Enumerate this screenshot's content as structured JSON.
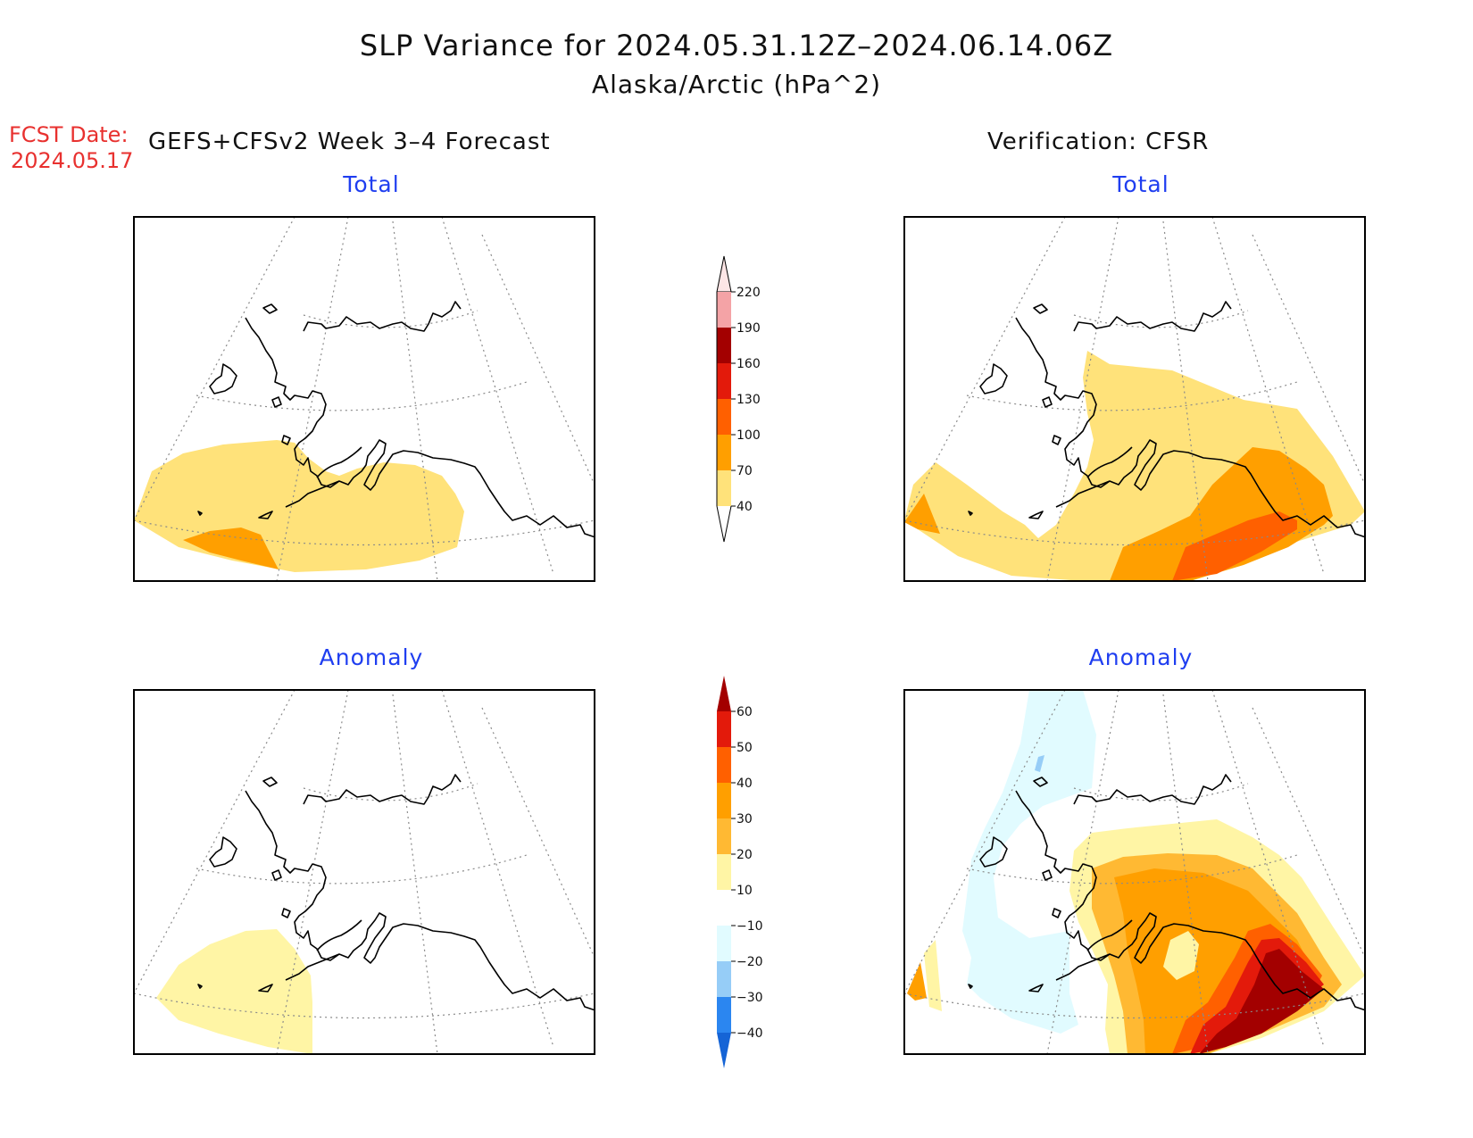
{
  "title": "SLP Variance for 2024.05.31.12Z–2024.06.14.06Z",
  "subtitle": "Alaska/Arctic (hPa^2)",
  "fcst_label": "FCST Date:",
  "fcst_date": "2024.05.17",
  "left_heading": "GEFS+CFSv2 Week 3–4 Forecast",
  "right_heading": "Verification: CFSR",
  "panels": {
    "forecast_total": "Total",
    "verification_total": "Total",
    "forecast_anomaly": "Anomaly",
    "verification_anomaly": "Anomaly"
  },
  "total_colorbar": {
    "labels": [
      "220",
      "190",
      "160",
      "130",
      "100",
      "70",
      "40"
    ],
    "colors": [
      "#fde6e6",
      "#f4a3a6",
      "#a30000",
      "#e31a0b",
      "#ff6000",
      "#ff9f00",
      "#ffe27a"
    ]
  },
  "anomaly_colorbar": {
    "labels": [
      "60",
      "50",
      "40",
      "30",
      "20",
      "10",
      "−10",
      "−20",
      "−30",
      "−40"
    ],
    "colors": [
      "#a30000",
      "#e31a0b",
      "#ff6000",
      "#ff9f00",
      "#ffb933",
      "#fff5a5",
      "#ffffff",
      "#e1fbff",
      "#96cdf7",
      "#2b86f0",
      "#1564d6"
    ]
  },
  "shade_colors": {
    "yellow": "#ffe27a",
    "orange": "#ff9f00",
    "dark_orange": "#ff6000",
    "pale_yellow": "#fff5a5",
    "light_orange": "#ffb933",
    "red": "#e31a0b",
    "dark_red": "#a30000",
    "pale_cyan": "#e1fbff",
    "light_blue": "#96cdf7"
  }
}
